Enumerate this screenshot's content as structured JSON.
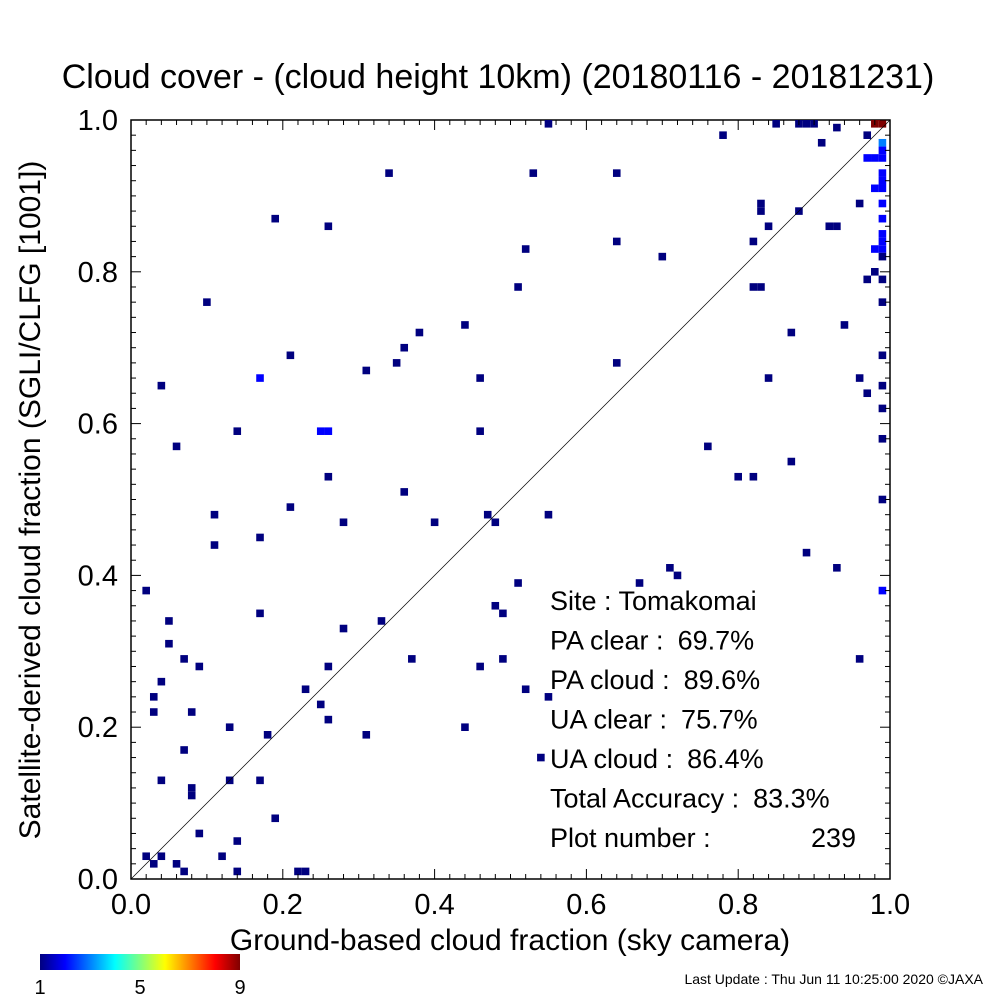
{
  "chart_data": {
    "type": "heatmap",
    "title": "Cloud cover - (cloud height 10km)  (20180116 - 20181231)",
    "xlabel": "Ground-based cloud fraction (sky camera)",
    "ylabel": "Satellite-derived cloud fraction (SGLI/CLFG [1001])",
    "xlim": [
      0,
      1
    ],
    "ylim": [
      0,
      1
    ],
    "x_ticks": [
      "0.0",
      "0.2",
      "0.4",
      "0.6",
      "0.8",
      "1.0"
    ],
    "y_ticks": [
      "0.0",
      "0.2",
      "0.4",
      "0.6",
      "0.8",
      "1.0"
    ],
    "reference_line": "1:1 diagonal",
    "stats": [
      {
        "label": "Site : Tomakomai",
        "value": ""
      },
      {
        "label": "PA clear :",
        "value": "69.7%"
      },
      {
        "label": "PA cloud :",
        "value": "89.6%"
      },
      {
        "label": "UA clear :",
        "value": "75.7%"
      },
      {
        "label": "UA cloud :",
        "value": "86.4%"
      },
      {
        "label": "Total Accuracy :",
        "value": "83.3%"
      },
      {
        "label": "Plot number :",
        "value": "239"
      }
    ],
    "colorbar": {
      "min_label": "1",
      "mid_label": "5",
      "max_label": "9",
      "colors": [
        "#00007f",
        "#0000ff",
        "#007fff",
        "#00ffff",
        "#7fff7f",
        "#ffff00",
        "#ff7f00",
        "#ff0000",
        "#7f0000"
      ]
    },
    "points": [
      [
        0.02,
        0.03,
        1
      ],
      [
        0.02,
        0.38,
        1
      ],
      [
        0.03,
        0.02,
        1
      ],
      [
        0.03,
        0.22,
        1
      ],
      [
        0.03,
        0.24,
        1
      ],
      [
        0.04,
        0.26,
        1
      ],
      [
        0.04,
        0.13,
        1
      ],
      [
        0.04,
        0.03,
        1
      ],
      [
        0.04,
        0.65,
        1
      ],
      [
        0.05,
        0.34,
        1
      ],
      [
        0.05,
        0.31,
        1
      ],
      [
        0.06,
        0.02,
        1
      ],
      [
        0.06,
        0.57,
        1
      ],
      [
        0.07,
        0.29,
        1
      ],
      [
        0.07,
        0.17,
        1
      ],
      [
        0.07,
        0.01,
        1
      ],
      [
        0.08,
        0.22,
        1
      ],
      [
        0.08,
        0.12,
        1
      ],
      [
        0.08,
        0.11,
        1
      ],
      [
        0.09,
        0.28,
        1
      ],
      [
        0.09,
        0.06,
        1
      ],
      [
        0.1,
        0.76,
        1
      ],
      [
        0.11,
        0.48,
        1
      ],
      [
        0.11,
        0.44,
        1
      ],
      [
        0.12,
        0.03,
        1
      ],
      [
        0.13,
        0.2,
        1
      ],
      [
        0.13,
        0.13,
        1
      ],
      [
        0.14,
        0.59,
        1
      ],
      [
        0.14,
        0.05,
        1
      ],
      [
        0.14,
        0.01,
        1
      ],
      [
        0.17,
        0.66,
        2
      ],
      [
        0.17,
        0.45,
        1
      ],
      [
        0.17,
        0.35,
        1
      ],
      [
        0.17,
        0.13,
        1
      ],
      [
        0.18,
        0.19,
        1
      ],
      [
        0.19,
        0.87,
        1
      ],
      [
        0.19,
        0.08,
        1
      ],
      [
        0.21,
        0.69,
        1
      ],
      [
        0.21,
        0.49,
        1
      ],
      [
        0.22,
        0.01,
        1
      ],
      [
        0.23,
        0.01,
        1
      ],
      [
        0.23,
        0.25,
        1
      ],
      [
        0.25,
        0.23,
        1
      ],
      [
        0.25,
        0.59,
        2
      ],
      [
        0.26,
        0.59,
        2
      ],
      [
        0.26,
        0.86,
        1
      ],
      [
        0.26,
        0.53,
        1
      ],
      [
        0.26,
        0.28,
        1
      ],
      [
        0.26,
        0.21,
        1
      ],
      [
        0.28,
        0.47,
        1
      ],
      [
        0.28,
        0.33,
        1
      ],
      [
        0.31,
        0.67,
        1
      ],
      [
        0.31,
        0.19,
        1
      ],
      [
        0.33,
        0.34,
        1
      ],
      [
        0.34,
        0.93,
        1
      ],
      [
        0.35,
        0.68,
        1
      ],
      [
        0.36,
        0.7,
        1
      ],
      [
        0.36,
        0.51,
        1
      ],
      [
        0.37,
        0.29,
        1
      ],
      [
        0.38,
        0.72,
        1
      ],
      [
        0.4,
        0.47,
        1
      ],
      [
        0.44,
        0.73,
        1
      ],
      [
        0.44,
        0.2,
        1
      ],
      [
        0.46,
        0.66,
        1
      ],
      [
        0.46,
        0.59,
        1
      ],
      [
        0.46,
        0.28,
        1
      ],
      [
        0.47,
        0.48,
        1
      ],
      [
        0.48,
        0.47,
        1
      ],
      [
        0.48,
        0.36,
        1
      ],
      [
        0.49,
        0.35,
        1
      ],
      [
        0.49,
        0.29,
        1
      ],
      [
        0.51,
        0.78,
        1
      ],
      [
        0.51,
        0.39,
        1
      ],
      [
        0.52,
        0.83,
        1
      ],
      [
        0.52,
        0.25,
        1
      ],
      [
        0.53,
        0.93,
        1
      ],
      [
        0.55,
        0.48,
        1
      ],
      [
        0.55,
        0.24,
        1
      ],
      [
        0.55,
        1.0,
        1
      ],
      [
        0.54,
        0.16,
        1
      ],
      [
        0.64,
        0.93,
        1
      ],
      [
        0.64,
        0.84,
        1
      ],
      [
        0.64,
        0.68,
        1
      ],
      [
        0.67,
        0.39,
        1
      ],
      [
        0.7,
        0.82,
        1
      ],
      [
        0.71,
        0.41,
        1
      ],
      [
        0.72,
        0.4,
        1
      ],
      [
        0.76,
        0.57,
        1
      ],
      [
        0.78,
        0.98,
        1
      ],
      [
        0.8,
        0.53,
        1
      ],
      [
        0.82,
        0.53,
        1
      ],
      [
        0.82,
        0.84,
        1
      ],
      [
        0.82,
        0.78,
        1
      ],
      [
        0.83,
        0.78,
        1
      ],
      [
        0.83,
        0.89,
        1
      ],
      [
        0.83,
        0.88,
        1
      ],
      [
        0.84,
        0.86,
        1
      ],
      [
        0.84,
        0.66,
        1
      ],
      [
        0.85,
        1.0,
        1
      ],
      [
        0.87,
        0.72,
        1
      ],
      [
        0.87,
        0.55,
        1
      ],
      [
        0.88,
        0.88,
        1
      ],
      [
        0.88,
        1.0,
        1
      ],
      [
        0.89,
        1.0,
        1
      ],
      [
        0.9,
        1.0,
        1
      ],
      [
        0.89,
        0.43,
        1
      ],
      [
        0.91,
        0.97,
        1
      ],
      [
        0.92,
        0.86,
        1
      ],
      [
        0.93,
        0.86,
        1
      ],
      [
        0.93,
        0.99,
        1
      ],
      [
        0.93,
        0.41,
        1
      ],
      [
        0.94,
        0.73,
        1
      ],
      [
        0.96,
        0.89,
        1
      ],
      [
        0.96,
        0.66,
        1
      ],
      [
        0.96,
        0.29,
        1
      ],
      [
        0.97,
        0.98,
        1
      ],
      [
        0.97,
        0.95,
        2
      ],
      [
        0.97,
        0.79,
        1
      ],
      [
        0.97,
        0.64,
        1
      ],
      [
        0.98,
        0.95,
        2
      ],
      [
        0.98,
        0.91,
        2
      ],
      [
        0.98,
        0.83,
        2
      ],
      [
        0.98,
        0.8,
        1
      ],
      [
        0.98,
        1.0,
        9
      ],
      [
        0.99,
        1.0,
        9
      ],
      [
        0.99,
        0.97,
        3
      ],
      [
        0.99,
        0.96,
        2
      ],
      [
        0.99,
        0.95,
        2
      ],
      [
        0.99,
        0.93,
        2
      ],
      [
        0.99,
        0.92,
        2
      ],
      [
        0.99,
        0.91,
        2
      ],
      [
        0.99,
        0.89,
        2
      ],
      [
        0.99,
        0.87,
        2
      ],
      [
        0.99,
        0.85,
        2
      ],
      [
        0.99,
        0.84,
        2
      ],
      [
        0.99,
        0.83,
        2
      ],
      [
        0.99,
        0.82,
        1
      ],
      [
        0.99,
        0.79,
        1
      ],
      [
        0.99,
        0.76,
        1
      ],
      [
        0.99,
        0.69,
        1
      ],
      [
        0.99,
        0.65,
        1
      ],
      [
        0.99,
        0.58,
        1
      ],
      [
        0.99,
        0.5,
        1
      ],
      [
        0.99,
        0.38,
        2
      ],
      [
        0.99,
        0.62,
        1
      ]
    ]
  },
  "footer": {
    "text": "Last Update : Thu Jun 11 10:25:00 2020  ©JAXA"
  }
}
